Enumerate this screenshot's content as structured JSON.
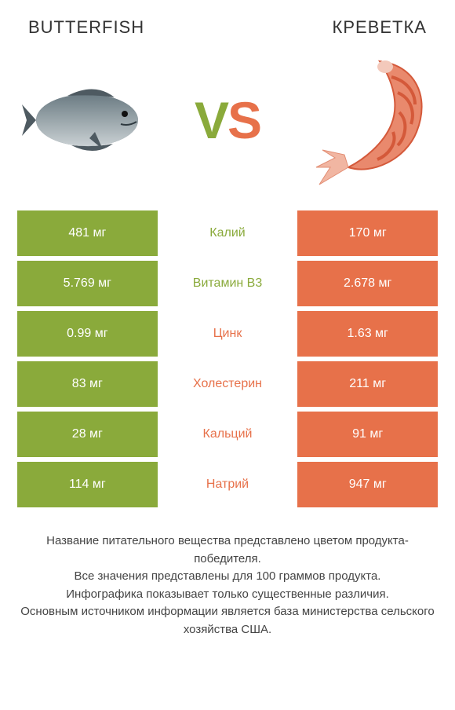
{
  "header": {
    "left_title": "BUTTERFISH",
    "right_title": "КРЕВЕТКА"
  },
  "vs": {
    "label_v": "V",
    "label_s": "S",
    "left_color": "#8aaa3b",
    "right_color": "#e7714a"
  },
  "colors": {
    "left_bg": "#8aaa3b",
    "right_bg": "#e7714a",
    "row_gap_bg": "#ffffff",
    "text_white": "#ffffff"
  },
  "table": {
    "rows": [
      {
        "left": "481 мг",
        "mid": "Калий",
        "right": "170 мг",
        "winner": "left"
      },
      {
        "left": "5.769 мг",
        "mid": "Витамин B3",
        "right": "2.678 мг",
        "winner": "left"
      },
      {
        "left": "0.99 мг",
        "mid": "Цинк",
        "right": "1.63 мг",
        "winner": "right"
      },
      {
        "left": "83 мг",
        "mid": "Холестерин",
        "right": "211 мг",
        "winner": "right"
      },
      {
        "left": "28 мг",
        "mid": "Кальций",
        "right": "91 мг",
        "winner": "right"
      },
      {
        "left": "114 мг",
        "mid": "Натрий",
        "right": "947 мг",
        "winner": "right"
      }
    ]
  },
  "footnote": {
    "line1": "Название питательного вещества представлено цветом продукта-победителя.",
    "line2": "Все значения представлены для 100 граммов продукта.",
    "line3": "Инфографика показывает только существенные различия.",
    "line4": "Основным источником информации является база министерства сельского хозяйства США."
  },
  "images": {
    "left_alt": "butterfish-illustration",
    "right_alt": "shrimp-illustration"
  }
}
